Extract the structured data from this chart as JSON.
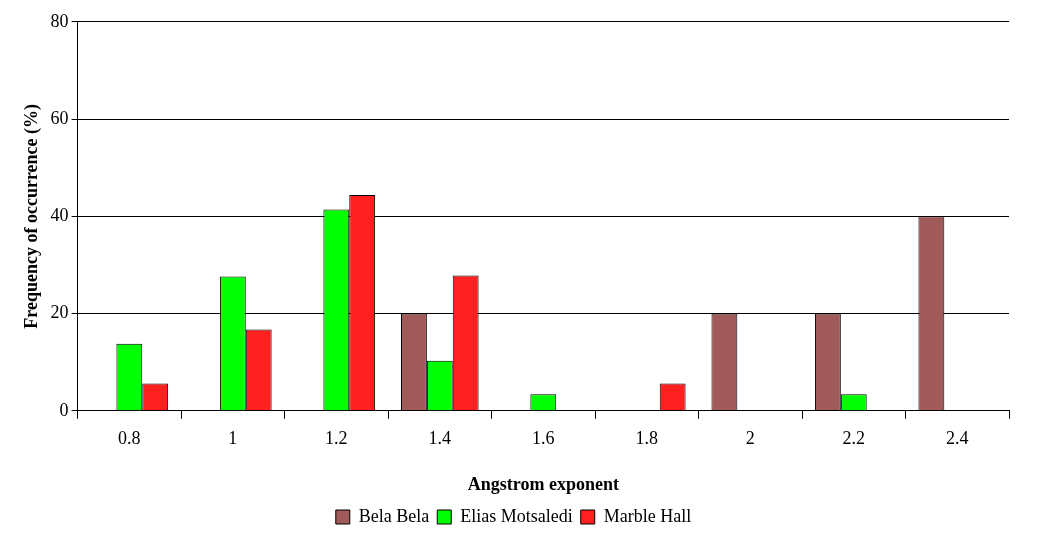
{
  "chart_data": {
    "type": "bar",
    "xlabel": "Angstrom exponent",
    "ylabel": "Frequency of occurrence (%)",
    "categories": [
      "0.8",
      "1",
      "1.2",
      "1.4",
      "1.6",
      "1.8",
      "2",
      "2.2",
      "2.4"
    ],
    "series": [
      {
        "name": "Bela Bela",
        "color": "#a05a5a",
        "values": [
          null,
          null,
          null,
          20,
          null,
          null,
          20,
          20,
          40
        ]
      },
      {
        "name": "Elias Motsaledi",
        "color": "#00ff00",
        "values": [
          13.8,
          27.6,
          41.4,
          10.3,
          3.4,
          null,
          null,
          3.4,
          null
        ]
      },
      {
        "name": "Marble Hall",
        "color": "#ff2020",
        "values": [
          5.6,
          16.7,
          44.4,
          27.8,
          null,
          5.6,
          null,
          null,
          null
        ]
      }
    ],
    "ylim": [
      0,
      80
    ],
    "yticks": [
      0,
      20,
      40,
      60,
      80
    ],
    "grid": "y",
    "legend": "bottom"
  }
}
